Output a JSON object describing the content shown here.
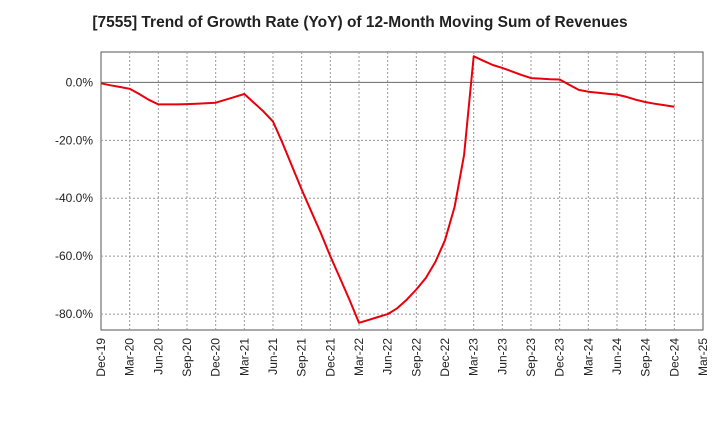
{
  "chart_data": {
    "type": "line",
    "title": "[7555]  Trend of Growth Rate (YoY) of 12-Month Moving Sum of Revenues",
    "xlabel": "",
    "ylabel": "",
    "x_tick_labels": [
      "Dec-19",
      "Mar-20",
      "Jun-20",
      "Sep-20",
      "Dec-20",
      "Mar-21",
      "Jun-21",
      "Sep-21",
      "Dec-21",
      "Mar-22",
      "Jun-22",
      "Sep-22",
      "Dec-22",
      "Mar-23",
      "Jun-23",
      "Sep-23",
      "Dec-23",
      "Mar-24",
      "Jun-24",
      "Sep-24",
      "Dec-24",
      "Mar-25"
    ],
    "y_tick_labels": [
      "0.0%",
      "-20.0%",
      "-40.0%",
      "-60.0%",
      "-80.0%"
    ],
    "y_ticks": [
      0,
      -20,
      -40,
      -60,
      -80
    ],
    "ylim": [
      -85.5,
      10.5
    ],
    "grid": true,
    "zero_line": true,
    "line_color": "#e8000b",
    "series": [
      {
        "x": [
          "Dec-19",
          "Jan-20",
          "Feb-20",
          "Mar-20",
          "Apr-20",
          "May-20",
          "Jun-20",
          "Jul-20",
          "Aug-20",
          "Sep-20",
          "Oct-20",
          "Nov-20",
          "Dec-20",
          "Jan-21",
          "Feb-21",
          "Mar-21",
          "Apr-21",
          "May-21",
          "Jun-21",
          "Jul-21",
          "Aug-21",
          "Sep-21",
          "Oct-21",
          "Nov-21",
          "Dec-21",
          "Jan-22",
          "Feb-22",
          "Mar-22",
          "Apr-22",
          "May-22",
          "Jun-22",
          "Jul-22",
          "Aug-22",
          "Sep-22",
          "Oct-22",
          "Nov-22",
          "Dec-22",
          "Jan-23",
          "Feb-23",
          "Mar-23",
          "Apr-23",
          "May-23",
          "Jun-23",
          "Jul-23",
          "Aug-23",
          "Sep-23",
          "Oct-23",
          "Nov-23",
          "Dec-23",
          "Jan-24",
          "Feb-24",
          "Mar-24",
          "Apr-24",
          "May-24",
          "Jun-24",
          "Jul-24",
          "Aug-24",
          "Sep-24",
          "Oct-24",
          "Nov-24",
          "Dec-24"
        ],
        "values": [
          -0.3,
          -1.0,
          -1.6,
          -2.2,
          -4.0,
          -6.0,
          -7.6,
          -7.6,
          -7.6,
          -7.5,
          -7.4,
          -7.2,
          -7.0,
          -6.0,
          -5.0,
          -4.0,
          -7.0,
          -10.0,
          -13.5,
          -21.0,
          -29.0,
          -37.0,
          -44.5,
          -52.0,
          -60.0,
          -67.5,
          -75.0,
          -83.0,
          -82.0,
          -81.0,
          -80.0,
          -78.0,
          -75.0,
          -71.5,
          -67.5,
          -62.0,
          -54.5,
          -43.0,
          -25.0,
          9.0,
          7.5,
          6.0,
          5.0,
          3.8,
          2.6,
          1.5,
          1.3,
          1.1,
          1.0,
          -0.8,
          -2.6,
          -3.2,
          -3.6,
          -3.9,
          -4.2,
          -5.0,
          -6.0,
          -6.8,
          -7.4,
          -7.9,
          -8.4
        ]
      }
    ]
  }
}
